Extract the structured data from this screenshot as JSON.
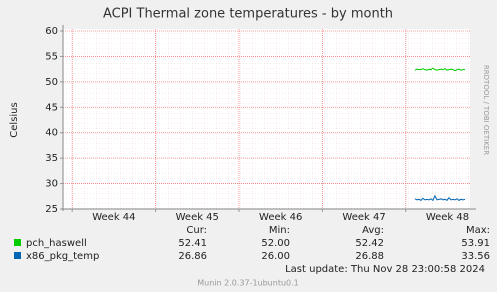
{
  "chart_data": {
    "type": "line",
    "title": "ACPI Thermal zone temperatures - by month",
    "y_label": "Celsius",
    "side_label": "RRDTOOL / TOBI OETIKER",
    "xlim": [
      43.89,
      48.77
    ],
    "xticks": [
      {
        "value": 44.5,
        "label": "Week 44"
      },
      {
        "value": 45.5,
        "label": "Week 45"
      },
      {
        "value": 46.5,
        "label": "Week 46"
      },
      {
        "value": 47.5,
        "label": "Week 47"
      },
      {
        "value": 48.5,
        "label": "Week 48"
      }
    ],
    "week_lines": [
      44,
      45,
      46,
      47,
      48
    ],
    "ylim": [
      25,
      60
    ],
    "yticks": [
      25,
      30,
      35,
      40,
      45,
      50,
      55,
      60
    ],
    "grid": true,
    "x": [
      48.11,
      48.134,
      48.158,
      48.182,
      48.206,
      48.23,
      48.254,
      48.278,
      48.302,
      48.326,
      48.35,
      48.374,
      48.398,
      48.422,
      48.446,
      48.47,
      48.494,
      48.518,
      48.542,
      48.566,
      48.59,
      48.614,
      48.638,
      48.662,
      48.686,
      48.71
    ],
    "series": [
      {
        "name": "pch_haswell",
        "color": "#00cc00",
        "values": [
          52.3,
          52.5,
          52.4,
          52.4,
          52.6,
          52.4,
          52.3,
          52.5,
          52.4,
          52.7,
          52.4,
          52.3,
          52.4,
          52.5,
          52.4,
          52.6,
          52.3,
          52.4,
          52.5,
          52.4,
          52.2,
          52.4,
          52.5,
          52.3,
          52.4,
          52.4
        ],
        "stats": [
          "52.41",
          "52.00",
          "52.42",
          "53.91"
        ]
      },
      {
        "name": "x86_pkg_temp",
        "color": "#0066b3",
        "values": [
          27.0,
          26.8,
          26.9,
          26.7,
          27.1,
          26.8,
          26.9,
          26.8,
          27.0,
          26.7,
          27.6,
          26.8,
          26.9,
          27.0,
          26.8,
          26.9,
          26.7,
          27.2,
          26.8,
          26.9,
          26.8,
          27.0,
          26.7,
          26.9,
          26.8,
          26.9
        ],
        "stats": [
          "26.86",
          "26.00",
          "26.88",
          "33.56"
        ]
      }
    ],
    "stat_headers": [
      "Cur:",
      "Min:",
      "Avg:",
      "Max:"
    ],
    "last_update": "Last update: Thu Nov 28 23:00:58 2024",
    "footer": "Munin 2.0.37-1ubuntu0.1"
  }
}
